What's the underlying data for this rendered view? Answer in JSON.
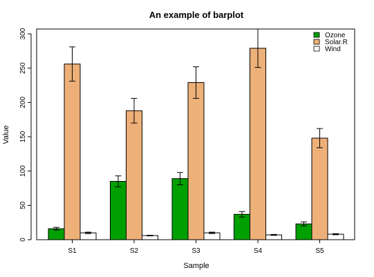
{
  "chart_data": {
    "type": "bar",
    "title": "An example of barplot",
    "xlabel": "Sample",
    "ylabel": "Value",
    "categories": [
      "S1",
      "S2",
      "S3",
      "S4",
      "S5"
    ],
    "ylim": [
      0,
      300
    ],
    "yticks": [
      0,
      50,
      100,
      150,
      200,
      250,
      300
    ],
    "grid": false,
    "legend_position": "top-right",
    "series": [
      {
        "name": "Ozone",
        "color": "#00a000",
        "values": [
          16,
          85,
          89,
          37,
          23
        ],
        "errors": [
          2,
          8,
          9,
          4,
          3
        ]
      },
      {
        "name": "Solar.R",
        "color": "#eeb079",
        "values": [
          256,
          188,
          229,
          279,
          148
        ],
        "errors": [
          25,
          18,
          23,
          28,
          14
        ]
      },
      {
        "name": "Wind",
        "color": "#ffffff",
        "values": [
          10,
          6,
          10,
          7,
          8
        ],
        "errors": [
          1,
          0.5,
          1,
          0.7,
          0.8
        ]
      }
    ]
  }
}
